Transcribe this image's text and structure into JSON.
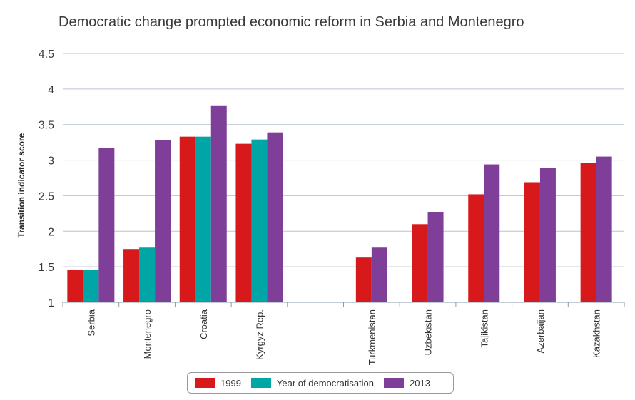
{
  "chart_data": {
    "type": "bar",
    "title": "Democratic change prompted economic reform in Serbia and Montenegro",
    "ylabel": "Transition indicator score",
    "xlabel": "",
    "ylim": [
      1,
      4.5
    ],
    "yticks": [
      "1",
      "1.5",
      "2",
      "2.5",
      "3",
      "3.5",
      "4",
      "4.5"
    ],
    "grid": true,
    "legend_placement": "bottom-center",
    "categories": [
      "Serbia",
      "Montenegro",
      "Croatia",
      "Kyrgyz Rep.",
      "",
      "Turkmenistan",
      "Uzbekistan",
      "Tajikistan",
      "Azerbaijan",
      "Kazakhstan"
    ],
    "series": [
      {
        "name": "1999",
        "color": "#d7191c",
        "values": [
          1.46,
          1.75,
          3.33,
          3.23,
          null,
          1.63,
          2.1,
          2.52,
          2.69,
          2.96
        ]
      },
      {
        "name": "Year of democratisation",
        "color": "#00a6a6",
        "values": [
          1.46,
          1.77,
          3.33,
          3.29,
          null,
          null,
          null,
          null,
          null,
          null
        ]
      },
      {
        "name": "2013",
        "color": "#7f3f98",
        "values": [
          3.17,
          3.28,
          3.77,
          3.39,
          null,
          1.77,
          2.27,
          2.94,
          2.89,
          3.05
        ]
      }
    ]
  }
}
